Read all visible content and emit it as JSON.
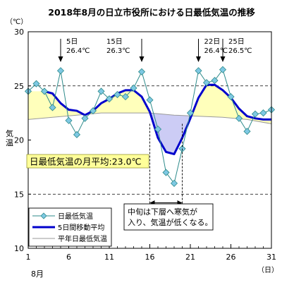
{
  "chart_data": {
    "type": "line",
    "title": "2018年8月の日立市役所における日最低気温の推移",
    "unit_label": "（℃）",
    "ylabel": "気温",
    "x_unit_label": "（日）",
    "month_label": "8月",
    "xlim": [
      1,
      31
    ],
    "ylim": [
      10,
      30
    ],
    "x_ticks": [
      1,
      6,
      11,
      16,
      21,
      26,
      31
    ],
    "y_ticks": [
      10,
      15,
      20,
      25,
      30
    ],
    "grid_dashed_y": [
      15,
      25
    ],
    "legend_position": "bottom-left",
    "series": [
      {
        "name": "日最低気温",
        "color": "#2e8b8b",
        "marker_color": "#7ec8e3",
        "x": [
          1,
          2,
          3,
          4,
          5,
          6,
          7,
          8,
          9,
          10,
          11,
          12,
          13,
          14,
          15,
          16,
          17,
          18,
          19,
          20,
          21,
          22,
          23,
          24,
          25,
          26,
          27,
          28,
          29,
          30,
          31
        ],
        "values": [
          24.5,
          25.2,
          24.5,
          23.0,
          26.4,
          21.8,
          20.5,
          22.0,
          22.7,
          24.5,
          23.8,
          24.2,
          24.0,
          24.8,
          26.3,
          23.7,
          21.0,
          17.0,
          16.0,
          19.2,
          22.5,
          26.4,
          25.3,
          25.5,
          26.5,
          24.0,
          22.0,
          20.8,
          22.4,
          22.5,
          22.8
        ]
      },
      {
        "name": "5日間移動平均",
        "color": "#0000cc",
        "x": [
          3,
          4,
          5,
          6,
          7,
          8,
          9,
          10,
          11,
          12,
          13,
          14,
          15,
          16,
          17,
          18,
          19,
          20,
          21,
          22,
          23,
          24,
          25,
          26,
          27,
          28,
          29
        ],
        "values": [
          24.5,
          24.3,
          23.4,
          22.8,
          22.7,
          22.3,
          22.7,
          23.4,
          23.8,
          24.3,
          24.6,
          24.6,
          24.0,
          22.6,
          20.2,
          18.9,
          18.7,
          20.2,
          22.0,
          23.9,
          25.1,
          25.1,
          24.6,
          23.9,
          22.9,
          22.2,
          22.0
        ],
        "tail": [
          [
            30,
            21.9
          ],
          [
            31,
            21.9
          ]
        ]
      },
      {
        "name": "平年日最低気温",
        "color": "#999999",
        "x": [
          1,
          4,
          7,
          10,
          13,
          16,
          19,
          22,
          25,
          28,
          31
        ],
        "values": [
          21.9,
          22.1,
          22.3,
          22.5,
          22.5,
          22.5,
          22.3,
          22.2,
          22.1,
          21.9,
          21.5
        ]
      }
    ],
    "annotations": [
      {
        "day": "5日",
        "temp": "26.4℃",
        "x": 5
      },
      {
        "day": "15日",
        "temp": "26.3℃",
        "x": 15
      },
      {
        "day": "22日",
        "temp": "26.4℃",
        "x": 22
      },
      {
        "day": "25日",
        "temp": "26.5℃",
        "x": 25
      }
    ],
    "monthly_mean_label": "日最低気温の月平均:23.0℃",
    "cold_period_note": [
      "中旬は下層へ寒気が",
      "入り、気温が低くなる。"
    ]
  }
}
